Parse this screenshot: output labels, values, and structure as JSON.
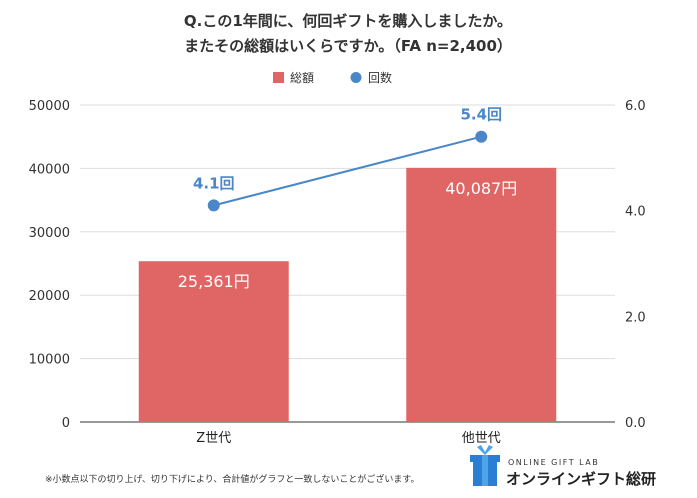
{
  "chart_data": {
    "type": "bar",
    "title": "Q.この1年間に、何回ギフトを購入しましたか。",
    "subtitle": "またその総額はいくらですか。（FA n=2,400）",
    "categories": [
      "Z世代",
      "他世代"
    ],
    "series": [
      {
        "name": "総額",
        "type": "bar",
        "axis": "left",
        "values": [
          25361,
          40087
        ],
        "labels": [
          "25,361円",
          "40,087円"
        ],
        "color": "#e06666"
      },
      {
        "name": "回数",
        "type": "line",
        "axis": "right",
        "values": [
          4.1,
          5.4
        ],
        "labels": [
          "4.1回",
          "5.4回"
        ],
        "color": "#4a86c8"
      }
    ],
    "ylim_left": [
      0,
      50000
    ],
    "yticks_left": [
      "0",
      "10000",
      "20000",
      "30000",
      "40000",
      "50000"
    ],
    "ylim_right": [
      0,
      6
    ],
    "yticks_right": [
      "0.0",
      "2.0",
      "4.0",
      "6.0"
    ],
    "grid": true,
    "legend_position": "top"
  },
  "footnote": "※小数点以下の切り上げ、切り下げにより、合計値がグラフと一致しないことがございます。",
  "logo": {
    "small": "ONLINE GIFT LAB",
    "main": "オンラインギフト総研",
    "icon": "gift-box-icon",
    "colors": {
      "box": "#2a7fd4",
      "ribbon": "#4fa3e8"
    }
  }
}
